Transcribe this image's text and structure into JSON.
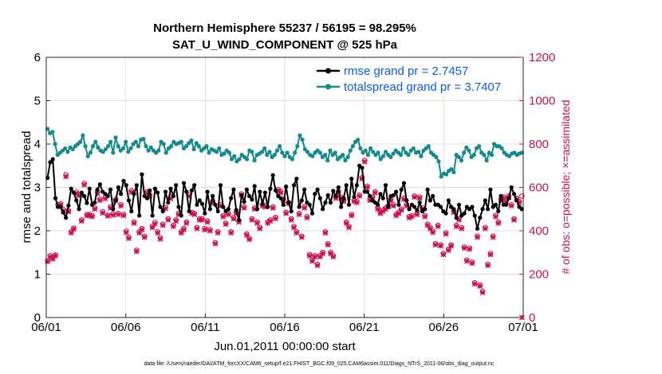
{
  "chart_data": {
    "type": "line",
    "title": "Northern Hemisphere 55237 / 56195 = 98.295%",
    "subtitle": "SAT_U_WIND_COMPONENT @ 525 hPa",
    "xlabel": "Jun.01,2011 00:00:00 start",
    "ylabel": "rmse and totalspread",
    "ylabel_right": "# of obs: o=possible; ×=assimilated",
    "footnote": "data file: /Users/raeder/DAI/ATM_forcXX/CAM6_setup/f.e21.FHIST_BGC.f09_025.CAM6assim.011/Diags_NTrS_2011-06/obs_diag_output.nc",
    "x_ticks": [
      "06/01",
      "06/06",
      "06/11",
      "06/16",
      "06/21",
      "06/26",
      "07/01"
    ],
    "y_ticks": [
      "0",
      "1",
      "2",
      "3",
      "4",
      "5",
      "6"
    ],
    "y_right_ticks": [
      "0",
      "200",
      "400",
      "600",
      "800",
      "1000",
      "1200"
    ],
    "xlim": [
      0,
      30
    ],
    "ylim": [
      0,
      6
    ],
    "ylim_right": [
      0,
      1200
    ],
    "grid": true,
    "legend_position": "top-right",
    "series": [
      {
        "name": "rmse grand pr = 2.7457",
        "color": "#000000",
        "axis": "left",
        "marker": "circle",
        "values": [
          3.22,
          3.58,
          3.65,
          2.75,
          2.55,
          2.55,
          2.42,
          2.3,
          2.58,
          2.97,
          2.88,
          2.7,
          2.5,
          2.88,
          2.8,
          2.64,
          2.97,
          2.6,
          2.65,
          2.95,
          3.07,
          2.9,
          2.85,
          2.8,
          2.95,
          2.5,
          2.7,
          3.0,
          2.85,
          3.15,
          3.05,
          2.7,
          2.45,
          2.85,
          3.05,
          2.35,
          3.3,
          2.8,
          2.75,
          2.93,
          2.35,
          2.97,
          2.88,
          2.55,
          2.45,
          2.9,
          2.65,
          2.97,
          2.8,
          3.05,
          2.55,
          2.35,
          3.1,
          2.9,
          2.45,
          2.93,
          3.05,
          2.6,
          2.7,
          2.62,
          2.4,
          2.9,
          2.5,
          2.8,
          2.6,
          2.45,
          3.05,
          2.55,
          2.45,
          2.5,
          2.75,
          2.95,
          2.48,
          2.25,
          2.82,
          2.67,
          2.95,
          2.8,
          2.72,
          3.03,
          2.5,
          2.9,
          2.62,
          2.88,
          2.55,
          2.97,
          3.28,
          2.93,
          2.8,
          2.75,
          2.6,
          3.02,
          2.65,
          2.45,
          3.05,
          3.2,
          2.55,
          2.7,
          2.95,
          2.65,
          2.6,
          2.4,
          2.85,
          2.95,
          2.75,
          2.5,
          2.65,
          2.82,
          2.65,
          2.92,
          2.8,
          3.0,
          2.55,
          2.75,
          3.05,
          2.6,
          3.2,
          2.78,
          3.05,
          3.5,
          3.45,
          2.9,
          2.9,
          2.8,
          2.7,
          2.65,
          2.6,
          2.85,
          2.75,
          3.05,
          2.55,
          2.8,
          2.82,
          2.9,
          2.6,
          2.95,
          3.1,
          2.7,
          2.5,
          2.6,
          2.55,
          2.47,
          2.65,
          2.45,
          2.5,
          2.95,
          2.7,
          2.8,
          2.6,
          2.6,
          2.55,
          2.45,
          2.4,
          2.7,
          2.55,
          2.5,
          2.3,
          2.6,
          2.35,
          2.4,
          2.55,
          2.5,
          2.55,
          2.35,
          2.05,
          2.3,
          2.5,
          2.7,
          2.5,
          2.95,
          2.55,
          2.6,
          2.45,
          2.8,
          2.6,
          2.6,
          2.75,
          3.0,
          2.85,
          2.7,
          2.55,
          2.5
        ]
      },
      {
        "name": "totalspread grand pr = 3.7407",
        "color": "#148a8a",
        "axis": "left",
        "marker": "circle",
        "values": [
          4.35,
          4.25,
          4.28,
          4.0,
          3.75,
          3.8,
          3.85,
          3.9,
          3.82,
          3.92,
          3.88,
          3.95,
          4.0,
          4.05,
          4.2,
          3.95,
          3.72,
          3.8,
          3.95,
          4.05,
          3.92,
          3.85,
          3.82,
          3.88,
          3.95,
          4.05,
          3.8,
          4.15,
          3.95,
          3.85,
          3.9,
          4.05,
          3.82,
          3.9,
          4.0,
          4.05,
          3.95,
          4.1,
          4.12,
          3.95,
          3.85,
          3.92,
          3.85,
          3.8,
          3.85,
          4.05,
          4.0,
          3.8,
          3.9,
          3.95,
          4.05,
          4.0,
          4.02,
          4.05,
          3.9,
          3.95,
          4.02,
          4.08,
          3.88,
          4.02,
          3.95,
          3.85,
          3.9,
          3.95,
          3.8,
          3.88,
          3.85,
          3.82,
          3.9,
          3.75,
          3.78,
          3.85,
          3.8,
          3.65,
          3.72,
          3.6,
          3.65,
          3.75,
          3.7,
          3.65,
          3.85,
          3.82,
          3.62,
          3.75,
          3.78,
          3.82,
          3.9,
          3.75,
          3.82,
          3.7,
          3.75,
          3.85,
          3.95,
          3.8,
          3.72,
          3.8,
          3.7,
          3.65,
          3.8,
          3.95,
          4.2,
          4.1,
          3.88,
          3.82,
          3.75,
          3.72,
          3.8,
          3.85,
          3.8,
          3.7,
          3.75,
          3.62,
          3.85,
          3.75,
          3.8,
          3.65,
          3.7,
          3.75,
          3.62,
          3.7,
          3.85,
          3.95,
          4.05,
          4.1,
          3.9,
          3.8,
          3.85,
          3.75,
          3.9,
          3.82,
          3.75,
          3.8,
          3.65,
          3.72,
          3.82,
          3.75,
          3.7,
          3.78,
          3.85,
          3.8,
          3.75,
          3.9,
          3.8,
          3.75,
          3.85,
          3.9,
          3.8,
          3.82,
          3.72,
          3.85,
          3.9,
          3.95,
          3.8,
          3.75,
          3.7,
          3.6,
          3.25,
          3.32,
          3.3,
          3.38,
          3.42,
          3.35,
          3.75,
          3.7,
          3.62,
          3.8,
          3.92,
          3.85,
          3.7,
          3.75,
          3.9,
          3.95,
          3.8,
          3.75,
          3.62,
          3.8,
          3.75,
          4.0,
          3.95,
          3.95,
          3.9,
          3.8,
          3.75,
          3.72,
          3.78,
          3.8,
          3.75,
          3.78,
          3.8
        ]
      }
    ],
    "obs_series": [
      {
        "name": "possible",
        "marker": "o",
        "color": "#cc0f54",
        "axis": "right",
        "values": [
          262,
          285,
          275,
          288,
          520,
          525,
          498,
          658,
          492,
          395,
          412,
          578,
          568,
          450,
          618,
          475,
          475,
          470,
          505,
          578,
          545,
          488,
          555,
          472,
          510,
          478,
          545,
          480,
          520,
          475,
          398,
          370,
          585,
          440,
          310,
          395,
          410,
          375,
          580,
          565,
          420,
          438,
          395,
          368,
          430,
          508,
          455,
          555,
          425,
          450,
          480,
          395,
          410,
          440,
          565,
          485,
          480,
          415,
          455,
          455,
          410,
          445,
          405,
          535,
          345,
          395,
          520,
          470,
          435,
          480,
          395,
          460,
          485,
          445,
          570,
          510,
          385,
          365,
          455,
          505,
          440,
          415,
          520,
          515,
          440,
          450,
          510,
          462,
          590,
          580,
          545,
          485,
          530,
          455,
          420,
          395,
          480,
          375,
          510,
          465,
          290,
          265,
          285,
          245,
          285,
          300,
          395,
          340,
          300,
          285,
          555,
          580,
          555,
          540,
          440,
          420,
          475,
          540,
          535,
          565,
          645,
          725,
          605,
          545,
          555,
          580,
          505,
          485,
          495,
          505,
          515,
          545,
          520,
          475,
          485,
          500,
          550,
          520,
          465,
          470,
          560,
          480,
          555,
          505,
          470,
          430,
          415,
          398,
          340,
          425,
          335,
          295,
          390,
          315,
          335,
          490,
          425,
          455,
          415,
          325,
          265,
          320,
          255,
          160,
          375,
          150,
          120,
          415,
          245,
          295,
          375,
          470,
          440,
          545,
          555,
          540,
          560,
          520,
          455,
          550,
          535,
          560
        ]
      },
      {
        "name": "assimilated",
        "marker": "x",
        "color": "#cc0f54",
        "axis": "right",
        "values": [
          258,
          280,
          270,
          285,
          515,
          520,
          492,
          650,
          488,
          390,
          408,
          572,
          562,
          445,
          612,
          470,
          470,
          465,
          500,
          572,
          540,
          482,
          548,
          468,
          505,
          472,
          538,
          475,
          515,
          470,
          392,
          365,
          578,
          435,
          305,
          390,
          405,
          370,
          575,
          560,
          415,
          432,
          390,
          362,
          425,
          502,
          450,
          548,
          420,
          445,
          475,
          390,
          405,
          435,
          560,
          480,
          475,
          410,
          450,
          450,
          405,
          440,
          400,
          530,
          340,
          390,
          515,
          465,
          430,
          475,
          390,
          455,
          480,
          440,
          565,
          505,
          380,
          360,
          450,
          500,
          435,
          410,
          515,
          510,
          435,
          445,
          505,
          456,
          585,
          575,
          540,
          480,
          525,
          450,
          415,
          390,
          475,
          370,
          505,
          460,
          285,
          260,
          280,
          240,
          280,
          295,
          390,
          335,
          295,
          280,
          550,
          575,
          550,
          535,
          435,
          415,
          470,
          535,
          530,
          560,
          640,
          718,
          600,
          540,
          550,
          575,
          500,
          480,
          490,
          500,
          510,
          540,
          515,
          470,
          480,
          495,
          545,
          515,
          460,
          465,
          555,
          475,
          550,
          500,
          465,
          425,
          410,
          392,
          335,
          420,
          330,
          290,
          385,
          310,
          330,
          485,
          420,
          450,
          410,
          320,
          260,
          315,
          250,
          155,
          370,
          145,
          115,
          410,
          240,
          290,
          370,
          465,
          435,
          540,
          550,
          535,
          555,
          515,
          450,
          545,
          530,
          0
        ]
      }
    ]
  }
}
